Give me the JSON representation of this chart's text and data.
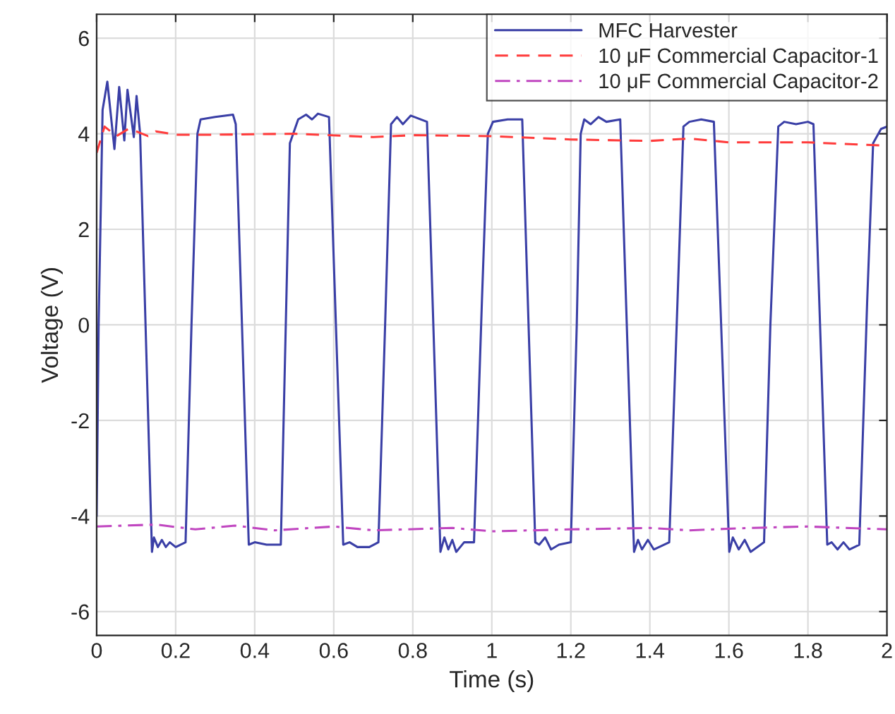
{
  "chart_data": {
    "type": "line",
    "xlabel": "Time (s)",
    "ylabel": "Voltage (V)",
    "xlim": [
      0,
      2
    ],
    "xticks": [
      0,
      0.2,
      0.4,
      0.6,
      0.8,
      1,
      1.2,
      1.4,
      1.6,
      1.8,
      2
    ],
    "ylim": [
      -6.5,
      6.5
    ],
    "yticks": [
      -6,
      -4,
      -2,
      0,
      2,
      4,
      6
    ],
    "grid": true,
    "legend": "top right",
    "marker": "none",
    "series": [
      {
        "name": "MFC Harvester",
        "color": "#3a3fa6",
        "line_style": "solid",
        "x": [
          0,
          0.005,
          0.015,
          0.027,
          0.045,
          0.057,
          0.07,
          0.078,
          0.094,
          0.101,
          0.11,
          0.14,
          0.145,
          0.155,
          0.165,
          0.175,
          0.185,
          0.2,
          0.225,
          0.24,
          0.255,
          0.263,
          0.3,
          0.345,
          0.352,
          0.385,
          0.4,
          0.43,
          0.466,
          0.48,
          0.489,
          0.51,
          0.53,
          0.545,
          0.56,
          0.588,
          0.624,
          0.64,
          0.66,
          0.69,
          0.713,
          0.73,
          0.745,
          0.76,
          0.775,
          0.795,
          0.836,
          0.87,
          0.88,
          0.89,
          0.9,
          0.91,
          0.93,
          0.955,
          0.975,
          0.99,
          1.003,
          1.04,
          1.077,
          1.11,
          1.12,
          1.135,
          1.15,
          1.17,
          1.2,
          1.215,
          1.225,
          1.234,
          1.25,
          1.27,
          1.29,
          1.325,
          1.36,
          1.37,
          1.38,
          1.395,
          1.41,
          1.449,
          1.47,
          1.485,
          1.5,
          1.53,
          1.562,
          1.601,
          1.61,
          1.625,
          1.64,
          1.655,
          1.689,
          1.705,
          1.725,
          1.74,
          1.77,
          1.8,
          1.814,
          1.849,
          1.86,
          1.875,
          1.89,
          1.905,
          1.93,
          1.95,
          1.965,
          1.985,
          2.0
        ],
        "values": [
          -4.0,
          0,
          4.5,
          5.09,
          3.68,
          4.98,
          3.86,
          4.92,
          3.93,
          4.79,
          4.0,
          -4.75,
          -4.45,
          -4.65,
          -4.5,
          -4.65,
          -4.55,
          -4.65,
          -4.55,
          0.0,
          4.0,
          4.3,
          4.35,
          4.4,
          4.2,
          -4.6,
          -4.55,
          -4.6,
          -4.6,
          0.5,
          3.8,
          4.3,
          4.4,
          4.3,
          4.42,
          4.35,
          -4.6,
          -4.55,
          -4.65,
          -4.65,
          -4.55,
          0,
          4.2,
          4.35,
          4.2,
          4.38,
          4.25,
          -4.75,
          -4.45,
          -4.7,
          -4.5,
          -4.75,
          -4.55,
          -4.55,
          0.5,
          4.0,
          4.25,
          4.3,
          4.3,
          -4.55,
          -4.6,
          -4.45,
          -4.7,
          -4.6,
          -4.55,
          0,
          4.0,
          4.3,
          4.2,
          4.35,
          4.25,
          4.3,
          -4.75,
          -4.5,
          -4.7,
          -4.5,
          -4.7,
          -4.55,
          0.5,
          4.15,
          4.25,
          4.3,
          4.25,
          -4.75,
          -4.45,
          -4.7,
          -4.5,
          -4.75,
          -4.55,
          0,
          4.15,
          4.25,
          4.2,
          4.25,
          4.2,
          -4.6,
          -4.55,
          -4.7,
          -4.55,
          -4.7,
          -4.6,
          0.5,
          3.8,
          4.1,
          4.15
        ]
      },
      {
        "name": "10 μF Commercial Capacitor-1",
        "color": "#ff3c3c",
        "line_style": "dashed",
        "x": [
          0,
          0.02,
          0.05,
          0.08,
          0.1,
          0.13,
          0.15,
          0.2,
          0.3,
          0.5,
          0.7,
          0.8,
          1.0,
          1.2,
          1.4,
          1.5,
          1.6,
          1.8,
          2.0
        ],
        "values": [
          3.6,
          4.15,
          3.95,
          4.1,
          4.05,
          3.95,
          4.05,
          3.98,
          3.98,
          4.0,
          3.93,
          3.97,
          3.95,
          3.88,
          3.85,
          3.9,
          3.82,
          3.82,
          3.75
        ]
      },
      {
        "name": "10 μF Commercial Capacitor-2",
        "color": "#c046c0",
        "line_style": "dashdot",
        "x": [
          0,
          0.15,
          0.25,
          0.35,
          0.45,
          0.6,
          0.7,
          0.9,
          1.0,
          1.2,
          1.4,
          1.5,
          1.65,
          1.8,
          2.0
        ],
        "values": [
          -4.22,
          -4.18,
          -4.28,
          -4.2,
          -4.3,
          -4.22,
          -4.3,
          -4.25,
          -4.32,
          -4.28,
          -4.25,
          -4.3,
          -4.25,
          -4.22,
          -4.28
        ]
      }
    ]
  }
}
